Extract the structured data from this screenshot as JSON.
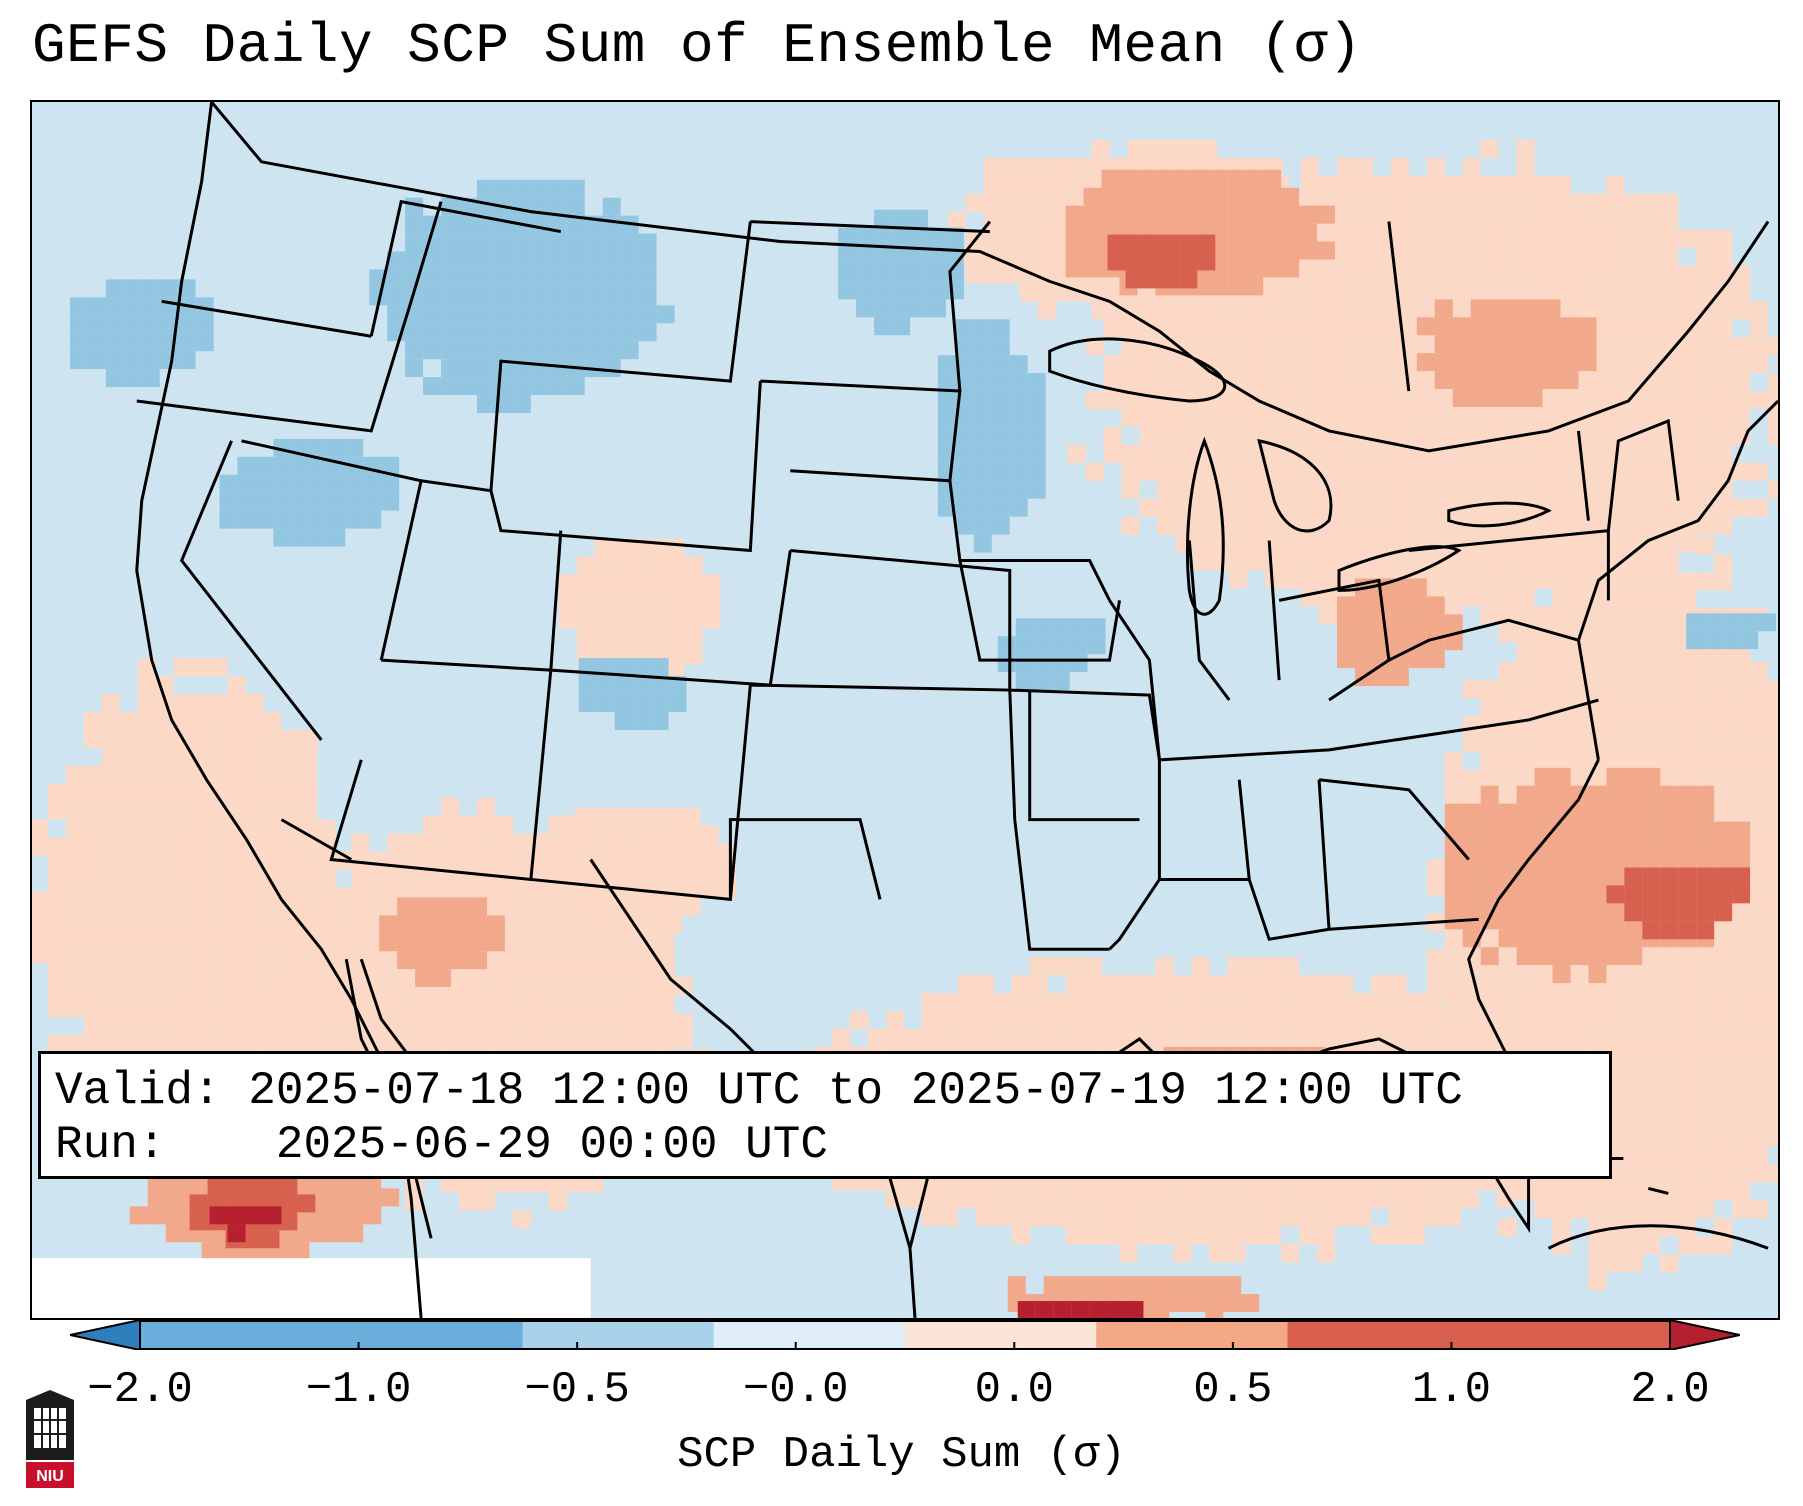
{
  "title": "GEFS Daily SCP Sum of Ensemble Mean (σ)",
  "map": {
    "region": "Continental United States",
    "ocean_label_hidden": true
  },
  "info": {
    "valid_label": "Valid:",
    "valid_value": "2025-07-18 12:00 UTC to 2025-07-19 12:00 UTC",
    "run_label": "Run:",
    "run_value": "2025-06-29 00:00 UTC"
  },
  "colorbar": {
    "label": "SCP Daily Sum (σ)",
    "ticks": [
      "−2.0",
      "−1.0",
      "−0.5",
      "−0.0",
      "0.0",
      "0.5",
      "1.0",
      "2.0"
    ],
    "colors": [
      "#2f7fbd",
      "#6aaedc",
      "#a9d2ea",
      "#deedf6",
      "#fbe3d7",
      "#f3a886",
      "#d9604f",
      "#b3202f"
    ]
  },
  "logo": {
    "text": "NIU"
  },
  "palette": {
    "light_blue": "#cfe4f1",
    "mid_blue": "#93c6e0",
    "light_red": "#fcd9c6",
    "mid_red": "#f2a88a",
    "dark_red": "#d7604e",
    "deep_red": "#b6202f"
  }
}
